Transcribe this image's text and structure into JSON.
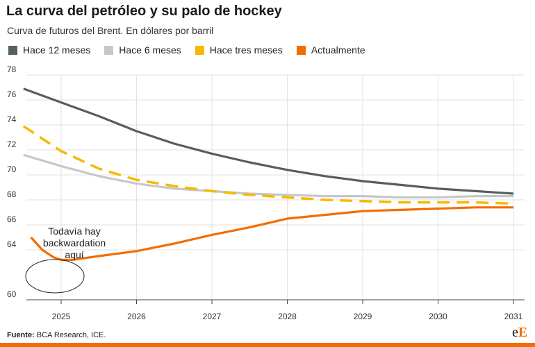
{
  "header": {
    "title": "La curva del petróleo y su palo de hockey",
    "subtitle": "Curva de futuros del Brent. En dólares por barril"
  },
  "legend": [
    {
      "label": "Hace 12 meses",
      "color": "#555f5d"
    },
    {
      "label": "Hace 6 meses",
      "color": "#c5c8ca"
    },
    {
      "label": "Hace tres meses",
      "color": "#f7b900"
    },
    {
      "label": "Actualmente",
      "color": "#f26d00"
    }
  ],
  "annotation": {
    "lines": [
      "Todavía hay",
      "backwardation",
      "aquí"
    ]
  },
  "footer": {
    "source_label": "Fuente:",
    "source_text": "BCA Research, ICE."
  },
  "logo": {
    "part1": "e",
    "part2": "E"
  },
  "chart_data": {
    "type": "line",
    "title": "La curva del petróleo y su palo de hockey",
    "subtitle": "Curva de futuros del Brent. En dólares por barril",
    "xlabel": "",
    "ylabel": "",
    "x_ticks": [
      "2025",
      "2026",
      "2027",
      "2028",
      "2029",
      "2030",
      "2031"
    ],
    "y_ticks": [
      60,
      64,
      66,
      68,
      70,
      72,
      74,
      76,
      78
    ],
    "y_tick_levels": [
      0,
      2,
      3,
      4,
      5,
      6,
      7,
      8,
      9
    ],
    "grid": true,
    "legend_position": "top",
    "series": [
      {
        "name": "Hace 12 meses",
        "color": "#555f5d",
        "style": "solid",
        "x": [
          2024.5,
          2025.0,
          2025.5,
          2026.0,
          2026.5,
          2027.0,
          2027.5,
          2028.0,
          2028.5,
          2029.0,
          2029.5,
          2030.0,
          2030.5,
          2030.75,
          2031.0
        ],
        "y": [
          76.9,
          75.8,
          74.7,
          73.5,
          72.5,
          71.7,
          71.0,
          70.4,
          69.9,
          69.5,
          69.2,
          68.9,
          68.7,
          68.6,
          68.5
        ]
      },
      {
        "name": "Hace 6 meses",
        "color": "#c5c8ca",
        "style": "solid",
        "x": [
          2024.5,
          2025.0,
          2025.5,
          2026.0,
          2026.5,
          2027.0,
          2027.5,
          2028.0,
          2028.5,
          2029.0,
          2029.5,
          2030.0,
          2030.5,
          2031.0
        ],
        "y": [
          71.6,
          70.7,
          69.9,
          69.3,
          68.9,
          68.7,
          68.5,
          68.4,
          68.3,
          68.3,
          68.2,
          68.2,
          68.3,
          68.3
        ]
      },
      {
        "name": "Hace tres meses",
        "color": "#f7b900",
        "style": "dashed",
        "x": [
          2024.5,
          2025.0,
          2025.5,
          2026.0,
          2026.5,
          2027.0,
          2027.5,
          2028.0,
          2028.5,
          2029.0,
          2029.5,
          2030.0,
          2030.5,
          2031.0
        ],
        "y": [
          73.9,
          71.9,
          70.5,
          69.6,
          69.1,
          68.7,
          68.4,
          68.2,
          68.0,
          67.9,
          67.8,
          67.8,
          67.8,
          67.7
        ]
      },
      {
        "name": "Actualmente",
        "color": "#f26d00",
        "style": "solid",
        "x": [
          2024.6,
          2024.75,
          2024.9,
          2025.0,
          2025.15,
          2025.5,
          2026.0,
          2026.5,
          2027.0,
          2027.5,
          2028.0,
          2028.5,
          2029.0,
          2029.5,
          2030.0,
          2030.5,
          2031.0
        ],
        "y": [
          65.0,
          64.0,
          63.4,
          63.2,
          63.2,
          63.5,
          63.9,
          64.5,
          65.2,
          65.8,
          66.5,
          66.8,
          67.1,
          67.2,
          67.3,
          67.4,
          67.4
        ]
      }
    ]
  }
}
